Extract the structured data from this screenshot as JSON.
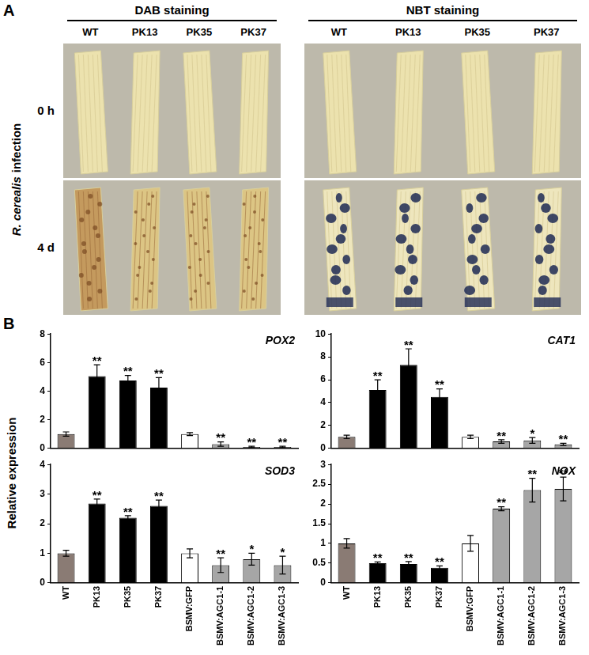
{
  "panel_a": {
    "label": "A",
    "row_title": [
      "R. cerealis",
      "infection"
    ],
    "rows": [
      "0 h",
      "4 d"
    ],
    "groups": [
      {
        "title": "DAB staining",
        "samples": [
          "WT",
          "PK13",
          "PK35",
          "PK37"
        ]
      },
      {
        "title": "NBT staining",
        "samples": [
          "WT",
          "PK13",
          "PK35",
          "PK37"
        ]
      }
    ]
  },
  "panel_b": {
    "label": "B",
    "y_label": "Relative expression"
  },
  "chart_data": [
    {
      "type": "bar",
      "title": "POX2",
      "categories": [
        "WT",
        "PK13",
        "PK35",
        "PK37",
        "BSMV:GFP",
        "BSMV:AGC1-1",
        "BSMV:AGC1-2",
        "BSMV:AGC1-3"
      ],
      "values": [
        1.0,
        5.05,
        4.75,
        4.25,
        1.0,
        0.3,
        0.1,
        0.1
      ],
      "errors": [
        0.15,
        0.8,
        0.35,
        0.7,
        0.1,
        0.15,
        0.05,
        0.05
      ],
      "significance": [
        null,
        "**",
        "**",
        "**",
        null,
        "**",
        "**",
        "**"
      ],
      "colors": [
        "#8a7b74",
        "#000000",
        "#000000",
        "#000000",
        "#ffffff",
        "#a6a6a6",
        "#a6a6a6",
        "#a6a6a6"
      ],
      "ylim": [
        0,
        8
      ],
      "yticks": [
        0,
        2,
        4,
        6,
        8
      ],
      "grid": false,
      "tick_labels": "y"
    },
    {
      "type": "bar",
      "title": "CAT1",
      "categories": [
        "WT",
        "PK13",
        "PK35",
        "PK37",
        "BSMV:GFP",
        "BSMV:AGC1-1",
        "BSMV:AGC1-2",
        "BSMV:AGC1-3"
      ],
      "values": [
        1.0,
        5.1,
        7.3,
        4.5,
        1.0,
        0.6,
        0.7,
        0.35
      ],
      "errors": [
        0.15,
        0.9,
        1.4,
        0.7,
        0.15,
        0.15,
        0.25,
        0.1
      ],
      "significance": [
        null,
        "**",
        "**",
        "**",
        null,
        "**",
        "*",
        "**"
      ],
      "colors": [
        "#8a7b74",
        "#000000",
        "#000000",
        "#000000",
        "#ffffff",
        "#a6a6a6",
        "#a6a6a6",
        "#a6a6a6"
      ],
      "ylim": [
        0,
        10
      ],
      "yticks": [
        0,
        2,
        4,
        6,
        8,
        10
      ],
      "grid": false,
      "tick_labels": "y"
    },
    {
      "type": "bar",
      "title": "SOD3",
      "categories": [
        "WT",
        "PK13",
        "PK35",
        "PK37",
        "BSMV:GFP",
        "BSMV:AGC1-1",
        "BSMV:AGC1-2",
        "BSMV:AGC1-3"
      ],
      "values": [
        1.0,
        2.68,
        2.2,
        2.6,
        1.0,
        0.6,
        0.8,
        0.6
      ],
      "errors": [
        0.1,
        0.15,
        0.07,
        0.2,
        0.15,
        0.25,
        0.2,
        0.3
      ],
      "significance": [
        null,
        "**",
        "**",
        "**",
        null,
        "**",
        "*",
        "*"
      ],
      "colors": [
        "#8a7b74",
        "#000000",
        "#000000",
        "#000000",
        "#ffffff",
        "#a6a6a6",
        "#a6a6a6",
        "#a6a6a6"
      ],
      "ylim": [
        0,
        4
      ],
      "yticks": [
        0,
        1,
        2,
        3,
        4
      ],
      "grid": false,
      "tick_labels": true
    },
    {
      "type": "bar",
      "title": "NOX",
      "categories": [
        "WT",
        "PK13",
        "PK35",
        "PK37",
        "BSMV:GFP",
        "BSMV:AGC1-1",
        "BSMV:AGC1-2",
        "BSMV:AGC1-3"
      ],
      "values": [
        1.0,
        0.5,
        0.48,
        0.38,
        1.0,
        1.88,
        2.35,
        2.38
      ],
      "errors": [
        0.12,
        0.03,
        0.06,
        0.05,
        0.2,
        0.05,
        0.3,
        0.3
      ],
      "significance": [
        null,
        "**",
        "**",
        "**",
        null,
        "**",
        "**",
        "**"
      ],
      "colors": [
        "#8a7b74",
        "#000000",
        "#000000",
        "#000000",
        "#ffffff",
        "#a6a6a6",
        "#a6a6a6",
        "#a6a6a6"
      ],
      "ylim": [
        0,
        3
      ],
      "yticks": [
        0,
        0.5,
        1,
        1.5,
        2,
        2.5,
        3
      ],
      "grid": false,
      "tick_labels": true
    }
  ]
}
